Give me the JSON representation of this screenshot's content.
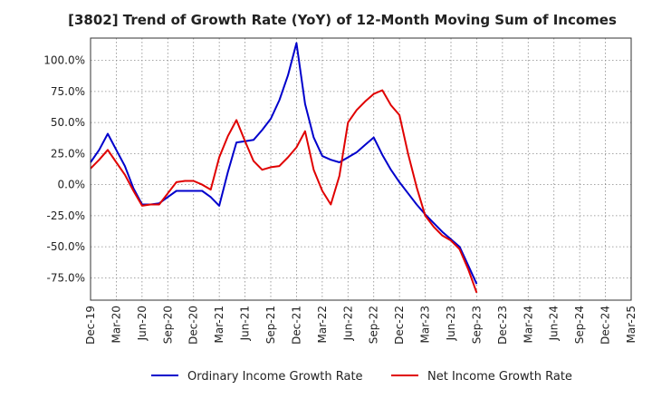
{
  "chart_data": {
    "type": "line",
    "title": "[3802]  Trend of Growth Rate (YoY) of 12-Month Moving Sum of Incomes",
    "xlabel": "",
    "ylabel": "",
    "ylim": [
      -0.93,
      1.18
    ],
    "grid": true,
    "legend_position": "bottom",
    "x_tick_labels": [
      "Dec-19",
      "Mar-20",
      "Jun-20",
      "Sep-20",
      "Dec-20",
      "Mar-21",
      "Jun-21",
      "Sep-21",
      "Dec-21",
      "Mar-22",
      "Jun-22",
      "Sep-22",
      "Dec-22",
      "Mar-23",
      "Jun-23",
      "Sep-23",
      "Dec-23",
      "Mar-24",
      "Jun-24",
      "Sep-24",
      "Dec-24",
      "Mar-25"
    ],
    "y_ticks": [
      1.0,
      0.75,
      0.5,
      0.25,
      0.0,
      -0.25,
      -0.5,
      -0.75
    ],
    "y_tick_labels": [
      "100.0%",
      "75.0%",
      "50.0%",
      "25.0%",
      "0.0%",
      "-25.0%",
      "-50.0%",
      "-75.0%"
    ],
    "series": [
      {
        "name": "Ordinary Income Growth Rate",
        "color": "#0000cc",
        "values": [
          [
            0,
            0.18
          ],
          [
            1,
            0.28
          ],
          [
            2,
            0.41
          ],
          [
            3,
            0.28
          ],
          [
            4,
            0.15
          ],
          [
            5,
            -0.03
          ],
          [
            6,
            -0.16
          ],
          [
            7,
            -0.16
          ],
          [
            8,
            -0.15
          ],
          [
            9,
            -0.1
          ],
          [
            10,
            -0.05
          ],
          [
            11,
            -0.05
          ],
          [
            12,
            -0.05
          ],
          [
            13,
            -0.05
          ],
          [
            14,
            -0.1
          ],
          [
            15,
            -0.17
          ],
          [
            16,
            0.1
          ],
          [
            17,
            0.34
          ],
          [
            18,
            0.35
          ],
          [
            19,
            0.36
          ],
          [
            20,
            0.44
          ],
          [
            21,
            0.53
          ],
          [
            22,
            0.68
          ],
          [
            23,
            0.88
          ],
          [
            24,
            1.14
          ],
          [
            25,
            0.65
          ],
          [
            26,
            0.38
          ],
          [
            27,
            0.23
          ],
          [
            28,
            0.2
          ],
          [
            29,
            0.18
          ],
          [
            30,
            0.22
          ],
          [
            31,
            0.26
          ],
          [
            32,
            0.32
          ],
          [
            33,
            0.38
          ],
          [
            34,
            0.24
          ],
          [
            35,
            0.12
          ],
          [
            36,
            0.02
          ],
          [
            37,
            -0.07
          ],
          [
            38,
            -0.16
          ],
          [
            39,
            -0.24
          ],
          [
            40,
            -0.31
          ],
          [
            41,
            -0.38
          ],
          [
            42,
            -0.44
          ],
          [
            43,
            -0.5
          ],
          [
            44,
            -0.65
          ],
          [
            45,
            -0.8
          ]
        ]
      },
      {
        "name": "Net Income Growth Rate",
        "color": "#e00000",
        "values": [
          [
            0,
            0.13
          ],
          [
            1,
            0.2
          ],
          [
            2,
            0.28
          ],
          [
            3,
            0.18
          ],
          [
            4,
            0.08
          ],
          [
            5,
            -0.05
          ],
          [
            6,
            -0.17
          ],
          [
            7,
            -0.16
          ],
          [
            8,
            -0.16
          ],
          [
            9,
            -0.07
          ],
          [
            10,
            0.02
          ],
          [
            11,
            0.03
          ],
          [
            12,
            0.03
          ],
          [
            13,
            0.0
          ],
          [
            14,
            -0.04
          ],
          [
            15,
            0.22
          ],
          [
            16,
            0.39
          ],
          [
            17,
            0.52
          ],
          [
            18,
            0.35
          ],
          [
            19,
            0.19
          ],
          [
            20,
            0.12
          ],
          [
            21,
            0.14
          ],
          [
            22,
            0.15
          ],
          [
            23,
            0.22
          ],
          [
            24,
            0.3
          ],
          [
            25,
            0.43
          ],
          [
            26,
            0.12
          ],
          [
            27,
            -0.05
          ],
          [
            28,
            -0.16
          ],
          [
            29,
            0.07
          ],
          [
            30,
            0.5
          ],
          [
            31,
            0.6
          ],
          [
            32,
            0.67
          ],
          [
            33,
            0.73
          ],
          [
            34,
            0.76
          ],
          [
            35,
            0.64
          ],
          [
            36,
            0.56
          ],
          [
            37,
            0.25
          ],
          [
            38,
            -0.02
          ],
          [
            39,
            -0.25
          ],
          [
            40,
            -0.34
          ],
          [
            41,
            -0.41
          ],
          [
            42,
            -0.45
          ],
          [
            43,
            -0.52
          ],
          [
            44,
            -0.68
          ],
          [
            45,
            -0.87
          ]
        ]
      }
    ]
  }
}
